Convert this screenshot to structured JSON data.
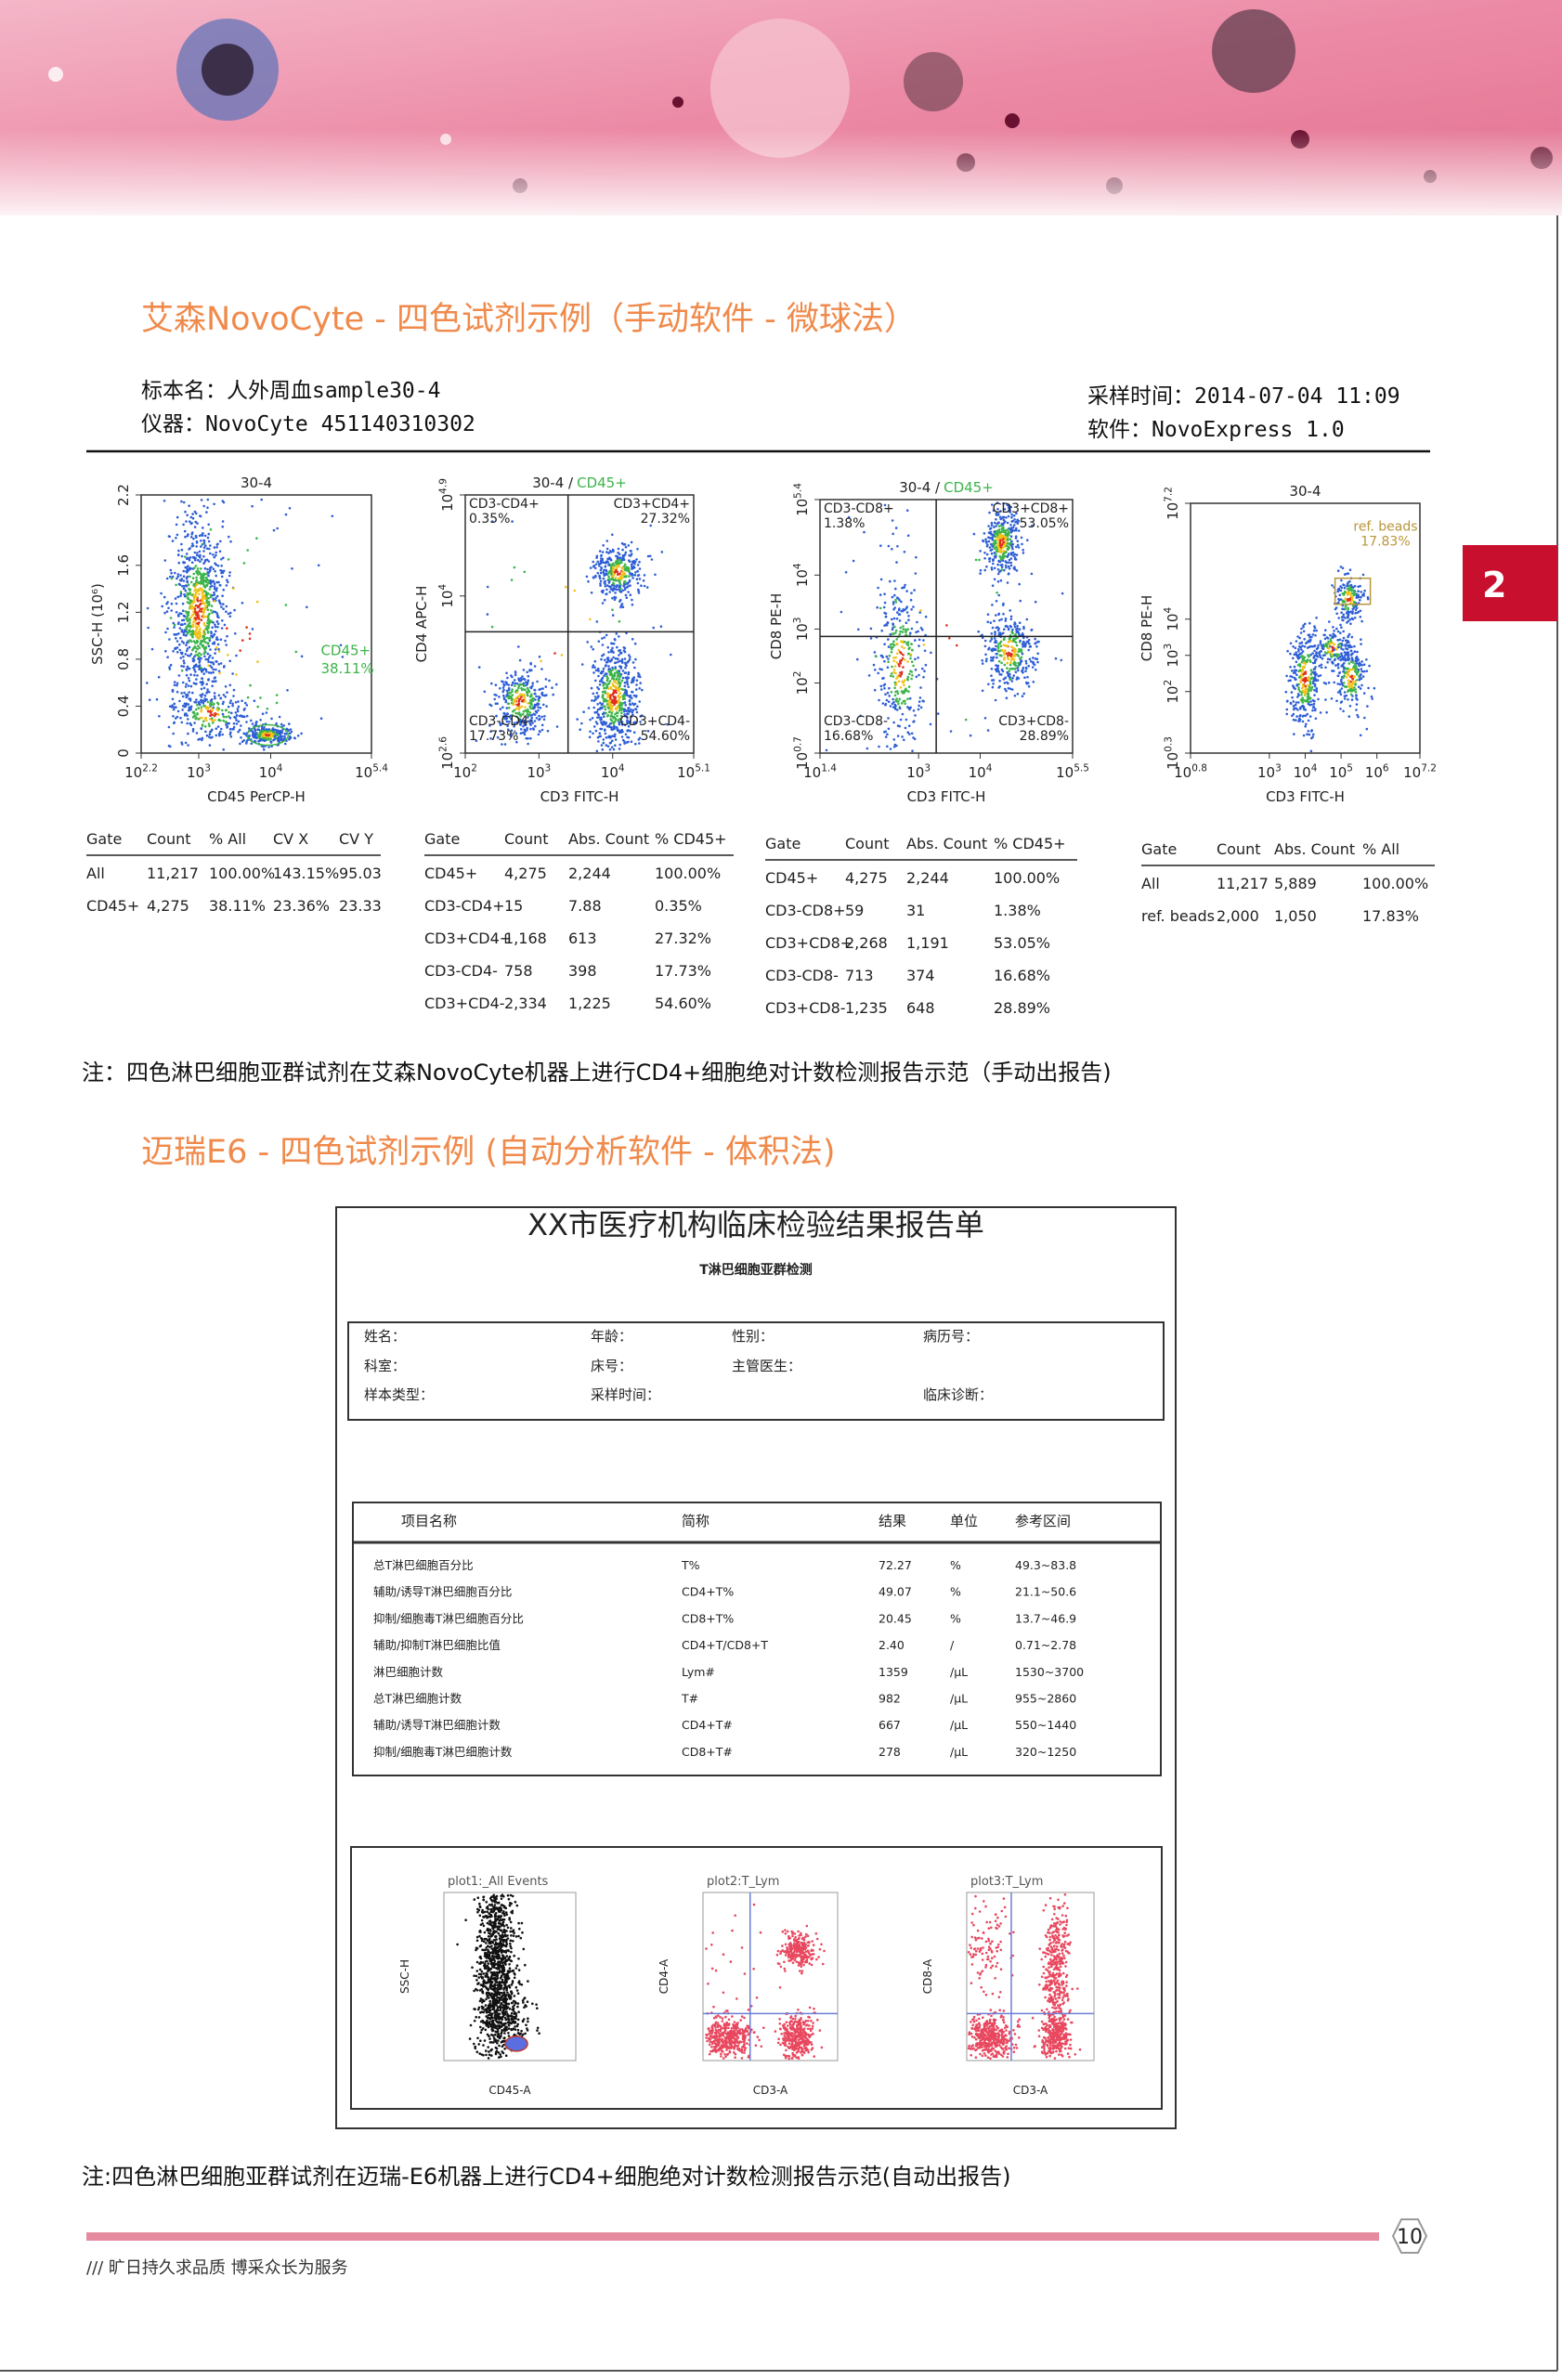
{
  "tab": "2",
  "section1": {
    "title": "艾森NovoCyte - 四色试剂示例（手动软件 - 微球法）",
    "sample": "标本名：人外周血sample30-4",
    "instrument": "仪器：NovoCyte 451140310302",
    "time": "采样时间：2014-07-04 11:09",
    "software": "软件：NovoExpress 1.0"
  },
  "plots": [
    {
      "title": [
        "30-4"
      ],
      "xlabel": "CD45 PerCP-H",
      "ylabel": "SSC-H (10⁶)",
      "xticks": [
        {
          "base": "10",
          "exp": "2.2"
        },
        {
          "base": "10",
          "exp": "3"
        },
        {
          "base": "10",
          "exp": "4"
        },
        {
          "base": "10",
          "exp": "5.4"
        }
      ],
      "yticks": [
        0,
        0.4,
        0.8,
        1.2,
        1.6,
        2.2
      ],
      "gate": [
        "CD45+",
        "38.11%"
      ]
    },
    {
      "title": [
        "30-4 /",
        "CD45+"
      ],
      "xlabel": "CD3 FITC-H",
      "ylabel": "CD4 APC-H",
      "xticks": [
        {
          "base": "10",
          "exp": "2"
        },
        {
          "base": "10",
          "exp": "3"
        },
        {
          "base": "10",
          "exp": "4"
        },
        {
          "base": "10",
          "exp": "5.1"
        }
      ],
      "yticks": [
        {
          "base": "10",
          "exp": "2.6"
        },
        {
          "base": "10",
          "exp": "4"
        },
        {
          "base": "10",
          "exp": "4.9"
        }
      ],
      "quadrants": [
        [
          "CD3-CD4+",
          "0.35%"
        ],
        [
          "CD3+CD4+",
          "27.32%"
        ],
        [
          "CD3-CD4-",
          "17.73%"
        ],
        [
          "CD3+CD4-",
          "54.60%"
        ]
      ]
    },
    {
      "title": [
        "30-4 /",
        "CD45+"
      ],
      "xlabel": "CD3 FITC-H",
      "ylabel": "CD8 PE-H",
      "xticks": [
        {
          "base": "10",
          "exp": "1.4"
        },
        {
          "base": "10",
          "exp": "3"
        },
        {
          "base": "10",
          "exp": "4"
        },
        {
          "base": "10",
          "exp": "5.5"
        }
      ],
      "yticks": [
        {
          "base": "10",
          "exp": "0.7"
        },
        {
          "base": "10",
          "exp": "2"
        },
        {
          "base": "10",
          "exp": "3"
        },
        {
          "base": "10",
          "exp": "4"
        },
        {
          "base": "10",
          "exp": "5.4"
        }
      ],
      "quadrants": [
        [
          "CD3-CD8+",
          "1.38%"
        ],
        [
          "CD3+CD8+",
          "53.05%"
        ],
        [
          "CD3-CD8-",
          "16.68%"
        ],
        [
          "CD3+CD8-",
          "28.89%"
        ]
      ]
    },
    {
      "title": [
        "30-4"
      ],
      "xlabel": "CD3 FITC-H",
      "ylabel": "CD8 PE-H",
      "xticks": [
        {
          "base": "10",
          "exp": "0.8"
        },
        {
          "base": "10",
          "exp": "3"
        },
        {
          "base": "10",
          "exp": "4"
        },
        {
          "base": "10",
          "exp": "5"
        },
        {
          "base": "10",
          "exp": "6"
        },
        {
          "base": "10",
          "exp": "7.2"
        }
      ],
      "yticks": [
        {
          "base": "10",
          "exp": "0.3"
        },
        {
          "base": "10",
          "exp": "2"
        },
        {
          "base": "10",
          "exp": "3"
        },
        {
          "base": "10",
          "exp": "4"
        },
        {
          "base": "10",
          "exp": "7.2"
        }
      ],
      "gate": [
        "ref. beads",
        "17.83%"
      ]
    }
  ],
  "tables": [
    {
      "header": [
        "Gate",
        "Count",
        "% All",
        "CV X",
        "CV Y"
      ],
      "rows": [
        [
          "All",
          "11,217",
          "100.00%",
          "143.15%",
          "95.03"
        ],
        [
          "CD45+",
          "4,275",
          "38.11%",
          "23.36%",
          "23.33"
        ]
      ]
    },
    {
      "header": [
        "Gate",
        "Count",
        "Abs. Count",
        "% CD45+"
      ],
      "rows": [
        [
          "CD45+",
          "4,275",
          "2,244",
          "100.00%"
        ],
        [
          "CD3-CD4+",
          "15",
          "7.88",
          "0.35%"
        ],
        [
          "CD3+CD4+",
          "1,168",
          "613",
          "27.32%"
        ],
        [
          "CD3-CD4-",
          "758",
          "398",
          "17.73%"
        ],
        [
          "CD3+CD4-",
          "2,334",
          "1,225",
          "54.60%"
        ]
      ]
    },
    {
      "header": [
        "Gate",
        "Count",
        "Abs. Count",
        "% CD45+"
      ],
      "rows": [
        [
          "CD45+",
          "4,275",
          "2,244",
          "100.00%"
        ],
        [
          "CD3-CD8+",
          "59",
          "31",
          "1.38%"
        ],
        [
          "CD3+CD8+",
          "2,268",
          "1,191",
          "53.05%"
        ],
        [
          "CD3-CD8-",
          "713",
          "374",
          "16.68%"
        ],
        [
          "CD3+CD8-",
          "1,235",
          "648",
          "28.89%"
        ]
      ]
    },
    {
      "header": [
        "Gate",
        "Count",
        "Abs. Count",
        "% All"
      ],
      "rows": [
        [
          "All",
          "11,217",
          "5,889",
          "100.00%"
        ],
        [
          "ref. beads",
          "2,000",
          "1,050",
          "17.83%"
        ]
      ]
    }
  ],
  "note1": "注：四色淋巴细胞亚群试剂在艾森NovoCyte机器上进行CD4+细胞绝对计数检测报告示范（手动出报告)",
  "section2": {
    "title": "迈瑞E6 - 四色试剂示例 (自动分析软件 - 体积法)"
  },
  "report": {
    "title": "XX市医疗机构临床检验结果报告单",
    "subtitle": "T淋巴细胞亚群检测",
    "fields": [
      "姓名：",
      "年龄：",
      "性别：",
      "病历号：",
      "科室：",
      "床号：",
      "主管医生：",
      "样本类型：",
      "采样时间：",
      "临床诊断："
    ],
    "table": {
      "header": [
        "项目名称",
        "简称",
        "结果",
        "单位",
        "参考区间"
      ],
      "rows": [
        [
          "总T淋巴细胞百分比",
          "T%",
          "72.27",
          "%",
          "49.3~83.8"
        ],
        [
          "辅助/诱导T淋巴细胞百分比",
          "CD4+T%",
          "49.07",
          "%",
          "21.1~50.6"
        ],
        [
          "抑制/细胞毒T淋巴细胞百分比",
          "CD8+T%",
          "20.45",
          "%",
          "13.7~46.9"
        ],
        [
          "辅助/抑制T淋巴细胞比值",
          "CD4+T/CD8+T",
          "2.40",
          "/",
          "0.71~2.78"
        ],
        [
          "淋巴细胞计数",
          "Lym#",
          "1359",
          "/μL",
          "1530~3700"
        ],
        [
          "总T淋巴细胞计数",
          "T#",
          "982",
          "/μL",
          "955~2860"
        ],
        [
          "辅助/诱导T淋巴细胞计数",
          "CD4+T#",
          "667",
          "/μL",
          "550~1440"
        ],
        [
          "抑制/细胞毒T淋巴细胞计数",
          "CD8+T#",
          "278",
          "/μL",
          "320~1250"
        ]
      ]
    },
    "plots": [
      {
        "title": "plot1:_All Events",
        "xlabel": "CD45-A",
        "ylabel": "SSC-H"
      },
      {
        "title": "plot2:T_Lym",
        "xlabel": "CD3-A",
        "ylabel": "CD4-A"
      },
      {
        "title": "plot3:T_Lym",
        "xlabel": "CD3-A",
        "ylabel": "CD8-A"
      }
    ]
  },
  "note2": "注:四色淋巴细胞亚群试剂在迈瑞-E6机器上进行CD4+细胞绝对计数检测报告示范(自动出报告)",
  "footer": {
    "page": "10",
    "slogan": "/// 旷日持久求品质 博采众长为服务"
  }
}
